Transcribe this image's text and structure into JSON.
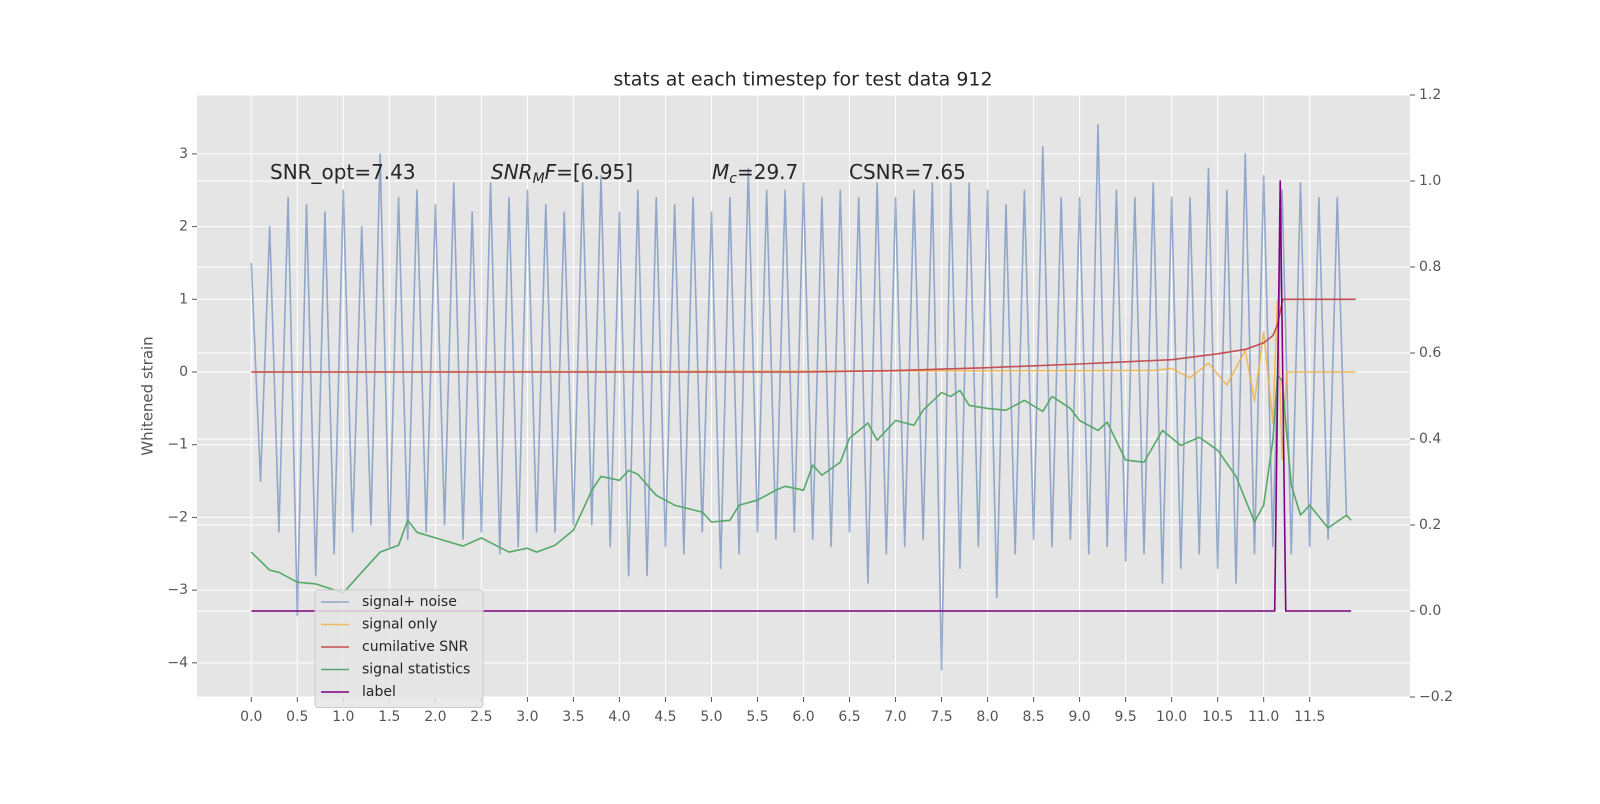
{
  "chart_data": {
    "type": "line",
    "title": "stats at each timestep for test data 912",
    "ylabel": "Whitened strain",
    "annotations": [
      [
        {
          "text": "SNR_opt=7.43"
        }
      ],
      [
        {
          "text": "SNR",
          "style": "italic"
        },
        {
          "text": "M",
          "style": "italic-sub"
        },
        {
          "text": "F",
          "style": "italic"
        },
        {
          "text": "=[6.95]"
        }
      ],
      [
        {
          "text": "M",
          "style": "italic"
        },
        {
          "text": "c",
          "style": "italic-sub"
        },
        {
          "text": "=29.7"
        }
      ],
      [
        {
          "text": "CSNR=7.65"
        }
      ]
    ],
    "xlim": [
      -0.59,
      12.59
    ],
    "xticks": [
      {
        "value": 0,
        "label": "0.0"
      },
      0.5,
      {
        "value": 1,
        "label": "1.0"
      },
      1.5,
      {
        "value": 2,
        "label": "2.0"
      },
      2.5,
      {
        "value": 3,
        "label": "3.0"
      },
      3.5,
      {
        "value": 4,
        "label": "4.0"
      },
      4.5,
      {
        "value": 5,
        "label": "5.0"
      },
      5.5,
      {
        "value": 6,
        "label": "6.0"
      },
      6.5,
      {
        "value": 7,
        "label": "7.0"
      },
      7.5,
      {
        "value": 8,
        "label": "8.0"
      },
      8.5,
      {
        "value": 9,
        "label": "9.0"
      },
      9.5,
      {
        "value": 10,
        "label": "10.0"
      },
      10.5,
      {
        "value": 11,
        "label": "11.0"
      },
      11.5
    ],
    "ylim": [
      -4.47,
      3.81
    ],
    "yticks": [
      {
        "value": -4,
        "label": "−4"
      },
      {
        "value": -3,
        "label": "−3"
      },
      {
        "value": -2,
        "label": "−2"
      },
      {
        "value": -1,
        "label": "−1"
      },
      0,
      1,
      2,
      3
    ],
    "y2lim": [
      -0.2,
      1.2
    ],
    "y2ticks": [
      {
        "value": -0.2,
        "label": "−0.2"
      },
      {
        "value": 0,
        "label": "0.0"
      },
      0.2,
      0.4,
      0.6,
      0.8,
      {
        "value": 1,
        "label": "1.0"
      },
      1.2
    ],
    "grid": true,
    "legend": "lower left",
    "series": [
      {
        "name": "signal+ noise",
        "color": "#4c72b0",
        "opacity": 0.55,
        "x": [
          0.0,
          0.1,
          0.2,
          0.3,
          0.4,
          0.5,
          0.6,
          0.7,
          0.8,
          0.9,
          1.0,
          1.1,
          1.2,
          1.3,
          1.4,
          1.5,
          1.6,
          1.7,
          1.8,
          1.9,
          2.0,
          2.1,
          2.2,
          2.3,
          2.4,
          2.5,
          2.6,
          2.7,
          2.8,
          2.9,
          3.0,
          3.1,
          3.2,
          3.3,
          3.4,
          3.5,
          3.6,
          3.7,
          3.8,
          3.9,
          4.0,
          4.1,
          4.2,
          4.3,
          4.4,
          4.5,
          4.6,
          4.7,
          4.8,
          4.9,
          5.0,
          5.1,
          5.2,
          5.3,
          5.4,
          5.5,
          5.6,
          5.7,
          5.8,
          5.9,
          6.0,
          6.1,
          6.2,
          6.3,
          6.4,
          6.5,
          6.6,
          6.7,
          6.8,
          6.9,
          7.0,
          7.1,
          7.2,
          7.3,
          7.4,
          7.5,
          7.6,
          7.7,
          7.8,
          7.9,
          8.0,
          8.1,
          8.2,
          8.3,
          8.4,
          8.5,
          8.6,
          8.7,
          8.8,
          8.9,
          9.0,
          9.1,
          9.2,
          9.3,
          9.4,
          9.5,
          9.6,
          9.7,
          9.8,
          9.9,
          10.0,
          10.1,
          10.2,
          10.3,
          10.4,
          10.5,
          10.6,
          10.7,
          10.8,
          10.9,
          11.0,
          11.1,
          11.2,
          11.3,
          11.4,
          11.5,
          11.6,
          11.7,
          11.8,
          11.9
        ],
        "values": [
          1.5,
          -1.5,
          2.0,
          -2.2,
          2.4,
          -3.35,
          2.3,
          -2.8,
          2.2,
          -2.5,
          2.5,
          -2.2,
          2.0,
          -2.1,
          3.0,
          -2.4,
          2.4,
          -2.3,
          2.5,
          -2.2,
          2.3,
          -2.1,
          2.6,
          -2.3,
          2.2,
          -2.2,
          2.6,
          -2.5,
          2.4,
          -2.4,
          2.5,
          -2.2,
          2.3,
          -2.2,
          2.2,
          -2.1,
          2.6,
          -2.1,
          2.7,
          -2.4,
          2.2,
          -2.8,
          2.5,
          -2.8,
          2.4,
          -2.4,
          2.3,
          -2.5,
          2.4,
          -2.2,
          2.2,
          -2.7,
          2.4,
          -2.5,
          2.8,
          -2.2,
          2.5,
          -2.3,
          2.5,
          -2.2,
          2.6,
          -2.3,
          2.4,
          -2.4,
          2.5,
          -2.2,
          2.4,
          -2.9,
          2.6,
          -2.5,
          2.4,
          -2.4,
          2.5,
          -2.3,
          2.6,
          -4.1,
          2.6,
          -2.7,
          2.6,
          -2.4,
          2.5,
          -3.1,
          2.3,
          -2.5,
          2.5,
          -2.3,
          3.1,
          -2.4,
          2.4,
          -2.3,
          2.4,
          -2.5,
          3.4,
          -2.4,
          2.5,
          -2.6,
          2.4,
          -2.5,
          2.6,
          -2.9,
          2.4,
          -2.7,
          2.4,
          -2.5,
          2.8,
          -2.7,
          2.5,
          -2.9,
          3.0,
          -2.5,
          2.7,
          -2.4,
          2.5,
          -2.5,
          2.6,
          -2.4,
          2.4,
          -2.3,
          2.4,
          -2.0
        ]
      },
      {
        "name": "signal only",
        "color": "#f0b040",
        "opacity": 0.8,
        "x": [
          0.0,
          9.8,
          10.0,
          10.2,
          10.4,
          10.6,
          10.8,
          10.9,
          11.0,
          11.1,
          11.15,
          11.2,
          11.25,
          12.0
        ],
        "values": [
          0,
          0.02,
          0.05,
          -0.08,
          0.12,
          -0.18,
          0.3,
          -0.4,
          0.55,
          -0.7,
          1.0,
          -1.2,
          0,
          0
        ]
      },
      {
        "name": "cumilative SNR",
        "color": "#c44e52",
        "opacity": 1,
        "x": [
          0.0,
          6.0,
          7.0,
          8.0,
          9.0,
          10.0,
          10.5,
          10.8,
          11.0,
          11.1,
          11.15,
          11.2,
          11.21,
          12.0
        ],
        "values": [
          0,
          0,
          0.02,
          0.06,
          0.11,
          0.17,
          0.25,
          0.31,
          0.4,
          0.5,
          0.65,
          0.95,
          1.0,
          1.0
        ]
      },
      {
        "name": "signal statistics",
        "color": "#55a868",
        "opacity": 1,
        "axis": "y2",
        "x": [
          0.0,
          0.2,
          0.3,
          0.5,
          0.7,
          1.0,
          1.2,
          1.4,
          1.6,
          1.7,
          1.8,
          2.0,
          2.3,
          2.5,
          2.8,
          3.0,
          3.1,
          3.3,
          3.5,
          3.6,
          3.7,
          3.8,
          4.0,
          4.1,
          4.2,
          4.4,
          4.6,
          4.9,
          5.0,
          5.2,
          5.3,
          5.5,
          5.7,
          5.8,
          6.0,
          6.1,
          6.2,
          6.4,
          6.5,
          6.7,
          6.8,
          7.0,
          7.2,
          7.3,
          7.5,
          7.6,
          7.7,
          7.8,
          8.0,
          8.2,
          8.4,
          8.6,
          8.7,
          8.9,
          9.0,
          9.2,
          9.3,
          9.5,
          9.7,
          9.9,
          10.1,
          10.3,
          10.5,
          10.7,
          10.9,
          11.0,
          11.1,
          11.15,
          11.2,
          11.3,
          11.4,
          11.5,
          11.7,
          11.9,
          11.95
        ],
        "values": [
          0.137,
          0.095,
          0.09,
          0.067,
          0.063,
          0.042,
          0.09,
          0.137,
          0.153,
          0.211,
          0.183,
          0.17,
          0.151,
          0.17,
          0.137,
          0.146,
          0.137,
          0.153,
          0.188,
          0.234,
          0.281,
          0.313,
          0.304,
          0.327,
          0.318,
          0.269,
          0.246,
          0.23,
          0.207,
          0.211,
          0.246,
          0.258,
          0.281,
          0.29,
          0.281,
          0.339,
          0.316,
          0.346,
          0.402,
          0.437,
          0.397,
          0.443,
          0.432,
          0.467,
          0.508,
          0.499,
          0.513,
          0.478,
          0.471,
          0.467,
          0.49,
          0.464,
          0.499,
          0.471,
          0.443,
          0.42,
          0.439,
          0.351,
          0.346,
          0.42,
          0.385,
          0.404,
          0.374,
          0.313,
          0.207,
          0.246,
          0.397,
          0.548,
          0.536,
          0.293,
          0.223,
          0.246,
          0.193,
          0.223,
          0.211
        ]
      },
      {
        "name": "label",
        "color": "#800080",
        "opacity": 1,
        "axis": "y2",
        "x": [
          0.0,
          11.12,
          11.18,
          11.24,
          11.95
        ],
        "values": [
          0,
          0,
          1,
          0,
          0
        ]
      }
    ]
  }
}
